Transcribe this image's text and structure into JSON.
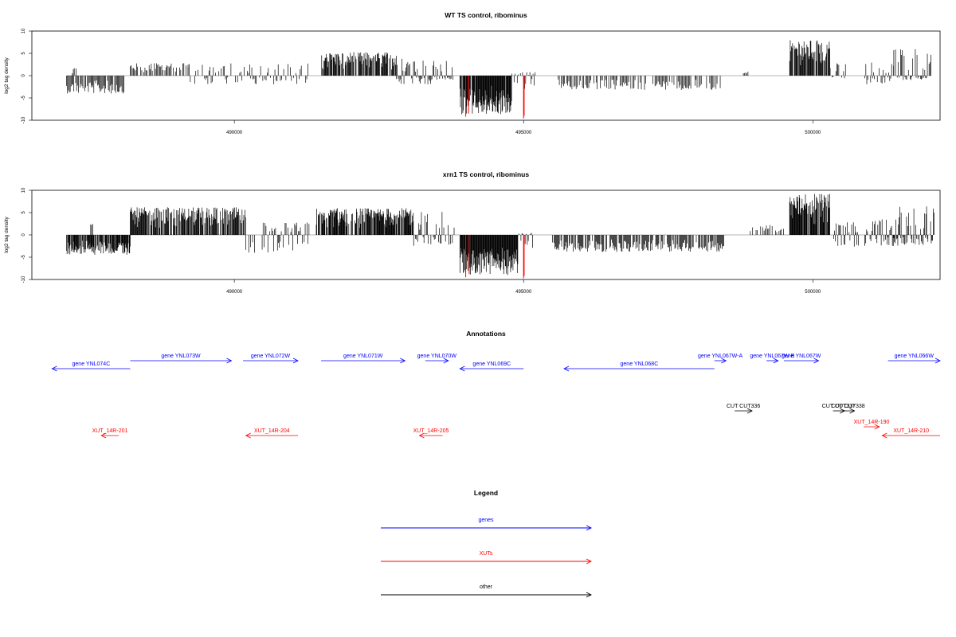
{
  "chart_data": [
    {
      "type": "bar",
      "title": "WT TS control, ribominus",
      "ylabel": "log2 tag density",
      "xlim": [
        486500,
        502200
      ],
      "ylim": [
        -10,
        10
      ],
      "yticks": [
        10,
        5,
        0,
        -5,
        -10
      ],
      "xticks": [
        490000,
        495000,
        500000
      ],
      "segments": [
        {
          "start": 487100,
          "end": 488100,
          "min": -4,
          "max": 0,
          "density": 0.55,
          "fill": 0.6
        },
        {
          "start": 487200,
          "end": 487300,
          "min": 0,
          "max": 2,
          "density": 0.5,
          "fill": 0.4
        },
        {
          "start": 488200,
          "end": 489200,
          "min": 0,
          "max": 2.8,
          "density": 0.4,
          "fill": 0.5
        },
        {
          "start": 489200,
          "end": 491300,
          "min": -2,
          "max": 2.8,
          "density": 0.35,
          "fill": 0.4
        },
        {
          "start": 491500,
          "end": 492800,
          "min": 0,
          "max": 5.3,
          "density": 0.9,
          "fill": 0.55
        },
        {
          "start": 492800,
          "end": 493400,
          "min": -2,
          "max": 4,
          "density": 0.5,
          "fill": 0.5
        },
        {
          "start": 493400,
          "end": 493800,
          "min": -1,
          "max": 4.5,
          "density": 0.5,
          "fill": 0.6
        },
        {
          "start": 493900,
          "end": 494800,
          "min": -8.8,
          "max": 0,
          "density": 1.0,
          "fill": 0.7
        },
        {
          "start": 494800,
          "end": 495200,
          "min": -3,
          "max": 0.8,
          "density": 0.4,
          "fill": 0.5
        },
        {
          "start": 495600,
          "end": 498400,
          "min": -3.2,
          "max": 0,
          "density": 0.4,
          "fill": 0.45
        },
        {
          "start": 498800,
          "end": 498900,
          "min": 0,
          "max": 1,
          "density": 0.3,
          "fill": 0.5
        },
        {
          "start": 499600,
          "end": 500300,
          "min": 0,
          "max": 8,
          "density": 0.9,
          "fill": 0.6
        },
        {
          "start": 500300,
          "end": 500600,
          "min": -1,
          "max": 3,
          "density": 0.5,
          "fill": 0.4
        },
        {
          "start": 500900,
          "end": 501400,
          "min": -2,
          "max": 3,
          "density": 0.5,
          "fill": 0.5
        },
        {
          "start": 501400,
          "end": 502050,
          "min": -1,
          "max": 6,
          "density": 0.6,
          "fill": 0.55
        }
      ],
      "highlights": [
        {
          "x": 494000,
          "y": -9.2,
          "color": "#ff0000"
        },
        {
          "x": 494050,
          "y": -8.5,
          "color": "#ff0000"
        },
        {
          "x": 495000,
          "y": -9.6,
          "color": "#ff0000"
        },
        {
          "x": 495010,
          "y": -9.0,
          "color": "#ff0000"
        }
      ]
    },
    {
      "type": "bar",
      "title": "xrn1 TS control, ribominus",
      "ylabel": "log2 tag density",
      "xlim": [
        486500,
        502200
      ],
      "ylim": [
        -10,
        10
      ],
      "yticks": [
        10,
        5,
        0,
        -5,
        -10
      ],
      "xticks": [
        490000,
        495000,
        500000
      ],
      "segments": [
        {
          "start": 487100,
          "end": 488200,
          "min": -4.5,
          "max": 0,
          "density": 1.0,
          "fill": 0.6
        },
        {
          "start": 487500,
          "end": 487600,
          "min": 0,
          "max": 2.5,
          "density": 0.5,
          "fill": 0.4
        },
        {
          "start": 488200,
          "end": 490200,
          "min": 0,
          "max": 6.2,
          "density": 0.9,
          "fill": 0.55
        },
        {
          "start": 490200,
          "end": 491300,
          "min": -4,
          "max": 3,
          "density": 0.5,
          "fill": 0.4
        },
        {
          "start": 491400,
          "end": 493100,
          "min": 0,
          "max": 6,
          "density": 1.0,
          "fill": 0.55
        },
        {
          "start": 493100,
          "end": 493800,
          "min": -2.5,
          "max": 5.5,
          "density": 0.6,
          "fill": 0.5
        },
        {
          "start": 493900,
          "end": 494900,
          "min": -9,
          "max": 0,
          "density": 1.0,
          "fill": 0.75
        },
        {
          "start": 494900,
          "end": 495200,
          "min": -3,
          "max": 0.5,
          "density": 0.4,
          "fill": 0.5
        },
        {
          "start": 495500,
          "end": 498500,
          "min": -3.8,
          "max": 0,
          "density": 0.7,
          "fill": 0.5
        },
        {
          "start": 498900,
          "end": 499500,
          "min": 0,
          "max": 2.3,
          "density": 0.3,
          "fill": 0.4
        },
        {
          "start": 499600,
          "end": 500300,
          "min": 0,
          "max": 9.2,
          "density": 1.0,
          "fill": 0.6
        },
        {
          "start": 500300,
          "end": 500800,
          "min": -3,
          "max": 3,
          "density": 0.6,
          "fill": 0.45
        },
        {
          "start": 500900,
          "end": 501400,
          "min": -2.5,
          "max": 3.5,
          "density": 0.6,
          "fill": 0.5
        },
        {
          "start": 501400,
          "end": 502100,
          "min": -2.5,
          "max": 6.5,
          "density": 0.8,
          "fill": 0.6
        }
      ],
      "highlights": [
        {
          "x": 494000,
          "y": -9.5,
          "color": "#ff0000"
        },
        {
          "x": 494060,
          "y": -8.8,
          "color": "#ff0000"
        },
        {
          "x": 495000,
          "y": -9.7,
          "color": "#ff0000"
        },
        {
          "x": 495010,
          "y": -9.2,
          "color": "#ff0000"
        }
      ]
    }
  ],
  "annotations": {
    "title": "Annotations",
    "items": [
      {
        "label": "gene YNL074C",
        "start": 486850,
        "end": 488200,
        "dir": "left",
        "row": 2,
        "kind": "gene"
      },
      {
        "label": "gene YNL073W",
        "start": 488200,
        "end": 489950,
        "dir": "right",
        "row": 1,
        "kind": "gene"
      },
      {
        "label": "gene YNL072W",
        "start": 490150,
        "end": 491100,
        "dir": "right",
        "row": 1,
        "kind": "gene"
      },
      {
        "label": "gene YNL071W",
        "start": 491500,
        "end": 492950,
        "dir": "right",
        "row": 1,
        "kind": "gene"
      },
      {
        "label": "gene YNL070W",
        "start": 493300,
        "end": 493700,
        "dir": "right",
        "row": 1,
        "kind": "gene"
      },
      {
        "label": "gene YNL069C",
        "start": 493900,
        "end": 495000,
        "dir": "left",
        "row": 2,
        "kind": "gene"
      },
      {
        "label": "gene YNL068C",
        "start": 495700,
        "end": 498300,
        "dir": "left",
        "row": 2,
        "kind": "gene"
      },
      {
        "label": "gene YNL067W-A",
        "start": 498300,
        "end": 498500,
        "dir": "right",
        "row": 1,
        "kind": "gene"
      },
      {
        "label": "gene YNL067W-B",
        "start": 499200,
        "end": 499400,
        "dir": "right",
        "row": 1,
        "kind": "gene"
      },
      {
        "label": "gene YNL067W",
        "start": 499500,
        "end": 500100,
        "dir": "right",
        "row": 1,
        "kind": "gene"
      },
      {
        "label": "gene YNL066W",
        "start": 501300,
        "end": 502200,
        "dir": "right",
        "row": 1,
        "kind": "gene"
      },
      {
        "label": "CUT CUT336",
        "start": 498650,
        "end": 498950,
        "dir": "right",
        "row": 3,
        "kind": "other"
      },
      {
        "label": "CUT CUT337",
        "start": 500350,
        "end": 500550,
        "dir": "right",
        "row": 3,
        "kind": "other"
      },
      {
        "label": "CUT CUT338",
        "start": 500500,
        "end": 500720,
        "dir": "right",
        "row": 3,
        "kind": "other"
      },
      {
        "label": "XUT_14R-201",
        "start": 487700,
        "end": 488000,
        "dir": "left",
        "row": 5,
        "kind": "xut"
      },
      {
        "label": "XUT_14R-204",
        "start": 490200,
        "end": 491100,
        "dir": "left",
        "row": 5,
        "kind": "xut"
      },
      {
        "label": "XUT_14R-205",
        "start": 493200,
        "end": 493600,
        "dir": "left",
        "row": 5,
        "kind": "xut"
      },
      {
        "label": "XUT_14R-190",
        "start": 500880,
        "end": 501150,
        "dir": "right",
        "row": 4,
        "kind": "xut"
      },
      {
        "label": "XUT_14R-210",
        "start": 501200,
        "end": 502200,
        "dir": "left",
        "row": 5,
        "kind": "xut"
      }
    ]
  },
  "legend": {
    "title": "Legend",
    "items": [
      {
        "label": "genes",
        "kind": "gene"
      },
      {
        "label": "XUTs",
        "kind": "xut"
      },
      {
        "label": "other",
        "kind": "other"
      }
    ]
  },
  "colors": {
    "gene": "#0000ff",
    "xut": "#ff0000",
    "other": "#000000",
    "bar": "#000000",
    "axis": "#000000"
  }
}
